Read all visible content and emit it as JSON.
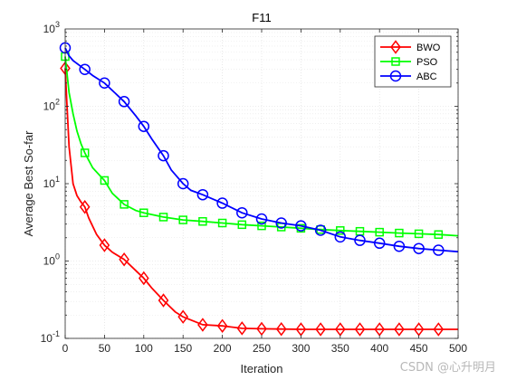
{
  "chart_data": {
    "type": "line",
    "title": "F11",
    "xlabel": "Iteration",
    "ylabel": "Average Best So-far",
    "xlim": [
      0,
      500
    ],
    "ylim": [
      0.1,
      1000
    ],
    "yscale": "log",
    "grid": true,
    "legend_position": "top-right",
    "xticks": [
      "0",
      "50",
      "100",
      "150",
      "200",
      "250",
      "300",
      "350",
      "400",
      "450",
      "500"
    ],
    "yticks": [
      {
        "base": "10",
        "exp": "-1"
      },
      {
        "base": "10",
        "exp": "0"
      },
      {
        "base": "10",
        "exp": "1"
      },
      {
        "base": "10",
        "exp": "2"
      },
      {
        "base": "10",
        "exp": "3"
      }
    ],
    "series": [
      {
        "name": "BWO",
        "color": "#ff0000",
        "marker": "diamond",
        "x": [
          0,
          2,
          5,
          10,
          15,
          20,
          25,
          30,
          40,
          50,
          60,
          75,
          90,
          100,
          110,
          125,
          140,
          150,
          175,
          200,
          225,
          250,
          275,
          300,
          325,
          350,
          375,
          400,
          425,
          450,
          475,
          500
        ],
        "y": [
          310,
          120,
          30,
          10,
          7,
          5.8,
          5.0,
          3.6,
          2.2,
          1.6,
          1.3,
          1.05,
          0.75,
          0.6,
          0.45,
          0.31,
          0.22,
          0.19,
          0.15,
          0.145,
          0.135,
          0.133,
          0.132,
          0.131,
          0.131,
          0.131,
          0.131,
          0.131,
          0.131,
          0.131,
          0.131,
          0.131
        ],
        "markers_x": [
          0,
          25,
          50,
          75,
          100,
          125,
          150,
          175,
          200,
          225,
          250,
          275,
          300,
          325,
          350,
          375,
          400,
          425,
          450,
          475
        ]
      },
      {
        "name": "PSO",
        "color": "#00ff00",
        "marker": "square",
        "x": [
          0,
          5,
          10,
          15,
          20,
          25,
          35,
          50,
          60,
          75,
          90,
          100,
          125,
          150,
          175,
          200,
          225,
          250,
          275,
          300,
          325,
          350,
          375,
          400,
          425,
          450,
          475,
          500
        ],
        "y": [
          440,
          150,
          80,
          48,
          33,
          25,
          16,
          11,
          7.5,
          5.4,
          4.5,
          4.2,
          3.7,
          3.4,
          3.25,
          3.1,
          2.95,
          2.85,
          2.75,
          2.65,
          2.55,
          2.48,
          2.42,
          2.36,
          2.3,
          2.25,
          2.2,
          2.12
        ],
        "markers_x": [
          0,
          25,
          50,
          75,
          100,
          125,
          150,
          175,
          200,
          225,
          250,
          275,
          300,
          325,
          350,
          375,
          400,
          425,
          450,
          475
        ]
      },
      {
        "name": "ABC",
        "color": "#0000ff",
        "marker": "circle",
        "x": [
          0,
          5,
          10,
          25,
          35,
          50,
          60,
          75,
          90,
          100,
          110,
          125,
          135,
          150,
          160,
          175,
          190,
          200,
          225,
          250,
          275,
          300,
          325,
          350,
          375,
          400,
          425,
          450,
          475,
          500
        ],
        "y": [
          570,
          450,
          390,
          300,
          250,
          200,
          160,
          115,
          75,
          55,
          38,
          23,
          15,
          10,
          8.2,
          7.2,
          6.2,
          5.6,
          4.2,
          3.5,
          3.1,
          2.85,
          2.5,
          2.05,
          1.85,
          1.7,
          1.55,
          1.45,
          1.38,
          1.32
        ],
        "markers_x": [
          0,
          25,
          50,
          75,
          100,
          125,
          150,
          175,
          200,
          225,
          250,
          275,
          300,
          325,
          350,
          375,
          400,
          425,
          450,
          475
        ]
      }
    ]
  },
  "watermark": "CSDN @心升明月"
}
